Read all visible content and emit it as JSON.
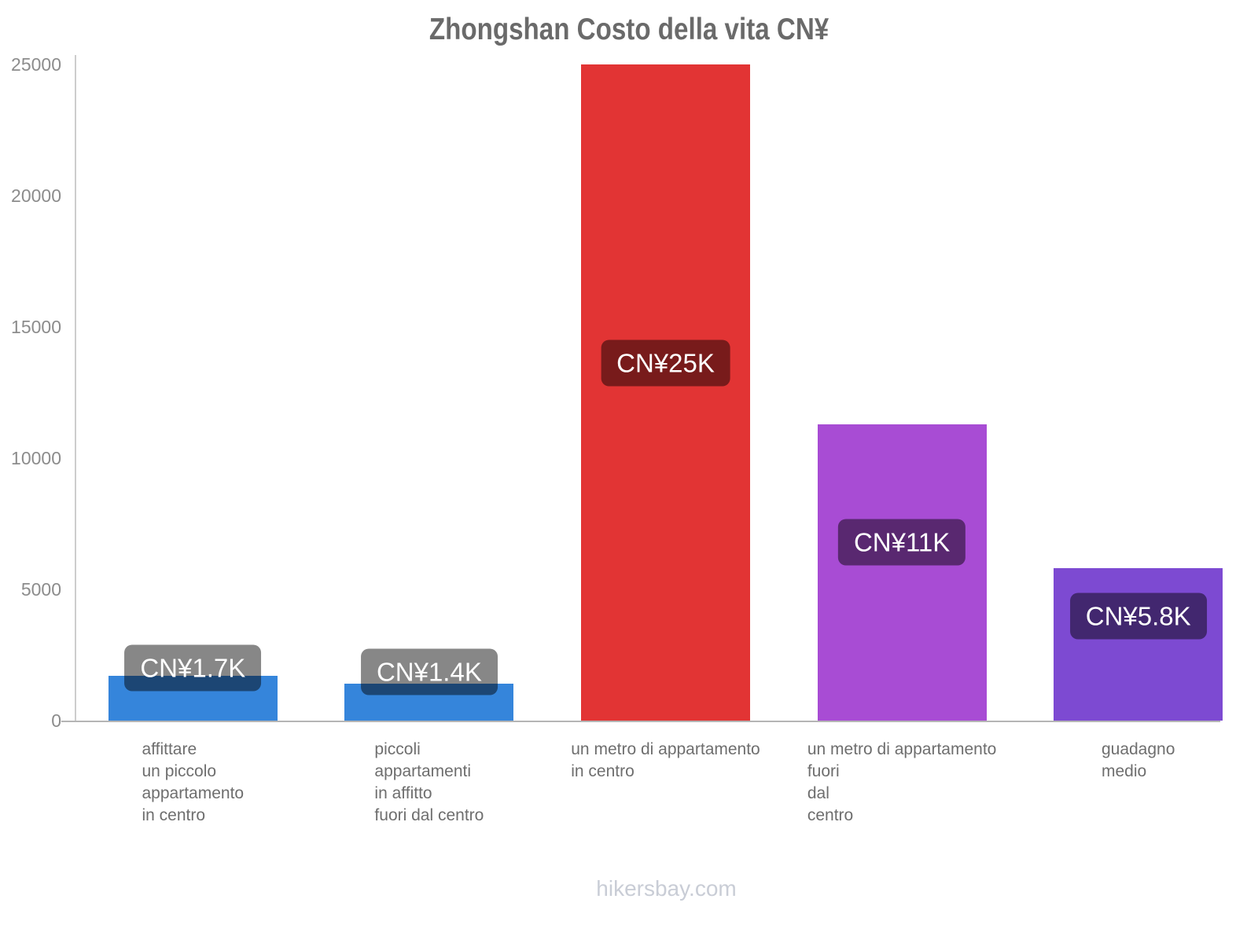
{
  "footer": {
    "text": "hikersbay.com"
  },
  "chart_data": {
    "type": "bar",
    "title": "Zhongshan Costo della vita CN¥",
    "currency": "CN¥",
    "categories": [
      "affittare un piccolo appartamento in centro",
      "piccoli appartamenti in affitto fuori dal centro",
      "un metro di appartamento in centro",
      "un metro di appartamento fuori dal centro",
      "guadagno medio"
    ],
    "category_lines": [
      [
        "affittare",
        "un piccolo",
        "appartamento",
        "in centro"
      ],
      [
        "piccoli",
        "appartamenti",
        "in affitto",
        "fuori dal centro"
      ],
      [
        "un metro di appartamento",
        "in centro"
      ],
      [
        "un metro di appartamento",
        "fuori",
        "dal",
        "centro"
      ],
      [
        "guadagno",
        "medio"
      ]
    ],
    "values": [
      1700,
      1400,
      25000,
      11300,
      5800
    ],
    "value_labels": [
      "CN¥1.7K",
      "CN¥1.4K",
      "CN¥25K",
      "CN¥11K",
      "CN¥5.8K"
    ],
    "bar_colors": [
      "#3585db",
      "#3585db",
      "#e23434",
      "#a84cd4",
      "#7d4ad2"
    ],
    "value_label_bg": "rgba(0,0,0,0.47)",
    "value_label_text_color": "#ffffff",
    "xlabel": "",
    "ylabel": "",
    "ylim": [
      0,
      25000
    ],
    "yticks": [
      0,
      5000,
      10000,
      15000,
      20000,
      25000
    ],
    "grid": false,
    "legend": null
  }
}
